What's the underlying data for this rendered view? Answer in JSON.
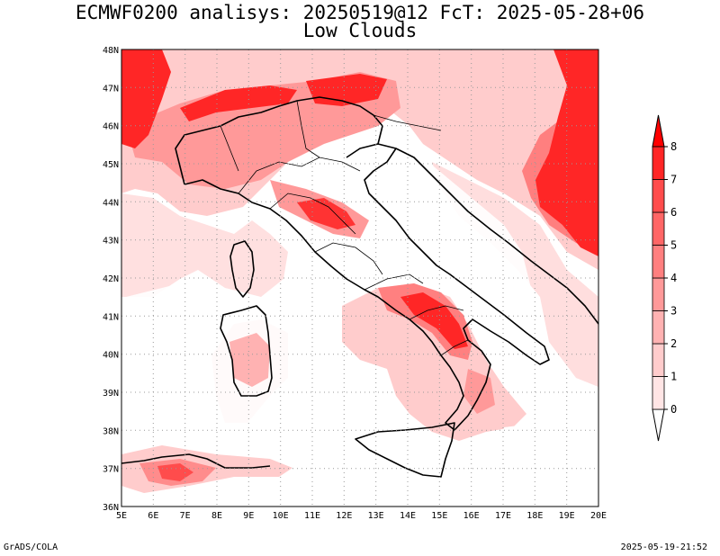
{
  "title_line1": "ECMWF0200 analisys: 20250519@12 FcT: 2025-05-28+06",
  "title_line2": "Low Clouds",
  "footer_left": "GrADS/COLA",
  "footer_right": "2025-05-19-21:52",
  "map": {
    "lon_range": [
      5,
      20
    ],
    "lat_range": [
      36,
      48
    ],
    "lon_ticks": [
      "5E",
      "6E",
      "7E",
      "8E",
      "9E",
      "10E",
      "11E",
      "12E",
      "13E",
      "14E",
      "15E",
      "16E",
      "17E",
      "18E",
      "19E",
      "20E"
    ],
    "lat_ticks": [
      "36N",
      "37N",
      "38N",
      "39N",
      "40N",
      "41N",
      "42N",
      "43N",
      "44N",
      "45N",
      "46N",
      "47N",
      "48N"
    ],
    "grid": "dotted"
  },
  "colorbar": {
    "levels": [
      "0",
      "1",
      "2",
      "3",
      "4",
      "5",
      "6",
      "7",
      "8"
    ],
    "colors": [
      "#ffe5e5",
      "#ffcccc",
      "#ffb2b2",
      "#ff9999",
      "#ff7f7f",
      "#ff6666",
      "#ff4c4c",
      "#ff2626"
    ]
  }
}
